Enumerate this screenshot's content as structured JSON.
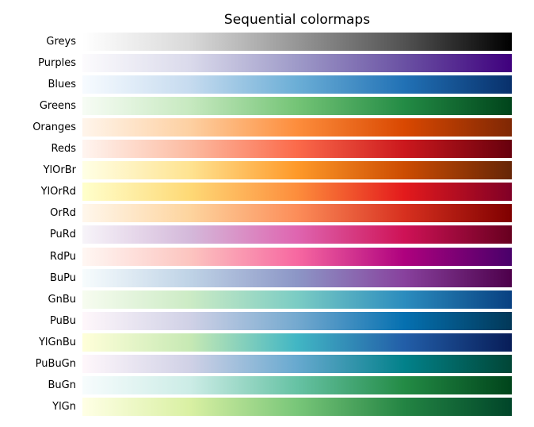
{
  "chart_data": {
    "type": "heatmap",
    "title": "Sequential colormaps",
    "xlabel": "",
    "ylabel": "",
    "grid": false,
    "series": [
      {
        "name": "Greys",
        "colors": [
          "#ffffff",
          "#d9d9d9",
          "#969696",
          "#525252",
          "#000000"
        ]
      },
      {
        "name": "Purples",
        "colors": [
          "#fcfbfd",
          "#dadaeb",
          "#9e9ac8",
          "#6a51a3",
          "#3f007d"
        ]
      },
      {
        "name": "Blues",
        "colors": [
          "#f7fbff",
          "#c6dbef",
          "#6baed6",
          "#2171b5",
          "#08306b"
        ]
      },
      {
        "name": "Greens",
        "colors": [
          "#f7fcf5",
          "#c7e9c0",
          "#74c476",
          "#238b45",
          "#00441b"
        ]
      },
      {
        "name": "Oranges",
        "colors": [
          "#fff5eb",
          "#fdd0a2",
          "#fd8d3c",
          "#d94801",
          "#7f2704"
        ]
      },
      {
        "name": "Reds",
        "colors": [
          "#fff5f0",
          "#fcbba1",
          "#fb6a4a",
          "#cb181d",
          "#67000d"
        ]
      },
      {
        "name": "YlOrBr",
        "colors": [
          "#ffffe5",
          "#fee391",
          "#fe9929",
          "#cc4c02",
          "#662506"
        ]
      },
      {
        "name": "YlOrRd",
        "colors": [
          "#ffffcc",
          "#fed976",
          "#fd8d3c",
          "#e31a1c",
          "#800026"
        ]
      },
      {
        "name": "OrRd",
        "colors": [
          "#fff7ec",
          "#fdd49e",
          "#fc8d59",
          "#d7301f",
          "#7f0000"
        ]
      },
      {
        "name": "PuRd",
        "colors": [
          "#f7f4f9",
          "#d4b9da",
          "#df65b0",
          "#ce1256",
          "#67001f"
        ]
      },
      {
        "name": "RdPu",
        "colors": [
          "#fff7f3",
          "#fcc5c0",
          "#f768a1",
          "#ae017e",
          "#49006a"
        ]
      },
      {
        "name": "BuPu",
        "colors": [
          "#f7fcfd",
          "#bfd3e6",
          "#8c96c6",
          "#88419d",
          "#4d004b"
        ]
      },
      {
        "name": "GnBu",
        "colors": [
          "#f7fcf0",
          "#ccebc5",
          "#7bccc4",
          "#2b8cbe",
          "#084081"
        ]
      },
      {
        "name": "PuBu",
        "colors": [
          "#fff7fb",
          "#d0d1e6",
          "#74a9cf",
          "#0570b0",
          "#023858"
        ]
      },
      {
        "name": "YlGnBu",
        "colors": [
          "#ffffd9",
          "#c7e9b4",
          "#41b6c4",
          "#225ea8",
          "#081d58"
        ]
      },
      {
        "name": "PuBuGn",
        "colors": [
          "#fff7fb",
          "#d0d1e6",
          "#67a9cf",
          "#02818a",
          "#014636"
        ]
      },
      {
        "name": "BuGn",
        "colors": [
          "#f7fcfd",
          "#ccece6",
          "#66c2a4",
          "#238b45",
          "#00441b"
        ]
      },
      {
        "name": "YlGn",
        "colors": [
          "#ffffe5",
          "#d9f0a3",
          "#78c679",
          "#238443",
          "#004529"
        ]
      }
    ]
  }
}
